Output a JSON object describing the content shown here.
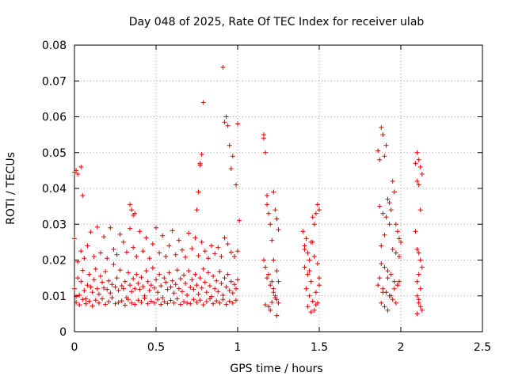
{
  "chart_data": {
    "type": "scatter",
    "title": "Day 048 of 2025, Rate Of TEC Index for receiver ulab",
    "xlabel": "GPS time / hours",
    "ylabel": "ROTI / TECUs",
    "xlim": [
      0,
      2.5
    ],
    "ylim": [
      0,
      0.08
    ],
    "xticks": [
      0,
      0.5,
      1,
      1.5,
      2,
      2.5
    ],
    "xtick_labels": [
      "0",
      "0.5",
      "1",
      "1.5",
      "2",
      "2.5"
    ],
    "yticks": [
      0,
      0.01,
      0.02,
      0.03,
      0.04,
      0.05,
      0.06,
      0.07,
      0.08
    ],
    "ytick_labels": [
      "0",
      "0.01",
      "0.02",
      "0.03",
      "0.04",
      "0.05",
      "0.06",
      "0.07",
      "0.08"
    ],
    "grid": true,
    "marker": "+",
    "marker_color": "#e00000",
    "x": [
      0.0,
      0.01,
      0.02,
      0.03,
      0.04,
      0.05,
      0.06,
      0.07,
      0.08,
      0.09,
      0.1,
      0.11,
      0.12,
      0.13,
      0.14,
      0.15,
      0.16,
      0.17,
      0.18,
      0.19,
      0.2,
      0.21,
      0.22,
      0.23,
      0.24,
      0.25,
      0.26,
      0.27,
      0.28,
      0.29,
      0.3,
      0.31,
      0.32,
      0.33,
      0.34,
      0.35,
      0.36,
      0.37,
      0.38,
      0.39,
      0.4,
      0.41,
      0.42,
      0.43,
      0.44,
      0.45,
      0.46,
      0.47,
      0.48,
      0.49,
      0.5,
      0.51,
      0.52,
      0.53,
      0.54,
      0.55,
      0.56,
      0.57,
      0.58,
      0.59,
      0.6,
      0.61,
      0.62,
      0.63,
      0.64,
      0.65,
      0.66,
      0.67,
      0.68,
      0.69,
      0.7,
      0.71,
      0.72,
      0.73,
      0.74,
      0.75,
      0.76,
      0.77,
      0.78,
      0.79,
      0.8,
      0.81,
      0.82,
      0.83,
      0.84,
      0.85,
      0.86,
      0.87,
      0.88,
      0.89,
      0.9,
      0.91,
      0.92,
      0.93,
      0.94,
      0.95,
      0.96,
      0.97,
      0.98,
      0.99,
      1.0,
      0.0,
      0.02,
      0.04,
      0.06,
      0.08,
      0.1,
      0.12,
      0.14,
      0.16,
      0.18,
      0.2,
      0.22,
      0.24,
      0.26,
      0.28,
      0.3,
      0.32,
      0.34,
      0.36,
      0.38,
      0.4,
      0.42,
      0.44,
      0.46,
      0.48,
      0.5,
      0.52,
      0.54,
      0.56,
      0.58,
      0.6,
      0.62,
      0.64,
      0.66,
      0.68,
      0.7,
      0.72,
      0.74,
      0.76,
      0.78,
      0.8,
      0.82,
      0.84,
      0.86,
      0.88,
      0.9,
      0.92,
      0.94,
      0.96,
      0.98,
      1.0,
      0.01,
      0.03,
      0.05,
      0.07,
      0.09,
      0.11,
      0.13,
      0.15,
      0.17,
      0.19,
      0.21,
      0.23,
      0.25,
      0.27,
      0.29,
      0.31,
      0.33,
      0.35,
      0.37,
      0.39,
      0.41,
      0.43,
      0.45,
      0.47,
      0.49,
      0.51,
      0.53,
      0.55,
      0.57,
      0.59,
      0.61,
      0.63,
      0.65,
      0.67,
      0.69,
      0.71,
      0.73,
      0.75,
      0.77,
      0.79,
      0.81,
      0.83,
      0.85,
      0.87,
      0.89,
      0.91,
      0.93,
      0.95,
      0.97,
      0.99,
      0.0,
      0.01,
      0.02,
      0.04,
      0.05,
      0.34,
      0.35,
      0.36,
      0.37,
      0.75,
      0.76,
      0.77,
      0.77,
      0.78,
      0.79,
      0.91,
      0.92,
      0.93,
      0.94,
      0.95,
      0.96,
      0.97,
      0.99,
      1.0,
      1.01,
      1.16,
      1.16,
      1.17,
      1.18,
      1.18,
      1.19,
      1.2,
      1.21,
      1.22,
      1.23,
      1.24,
      1.25,
      1.16,
      1.17,
      1.19,
      1.21,
      1.22,
      1.23,
      1.24,
      1.25,
      1.18,
      1.2,
      1.22,
      1.24,
      1.25,
      1.17,
      1.19,
      1.21,
      1.23,
      1.2,
      1.24,
      1.22,
      1.4,
      1.41,
      1.42,
      1.43,
      1.44,
      1.45,
      1.46,
      1.47,
      1.48,
      1.49,
      1.5,
      1.41,
      1.43,
      1.45,
      1.47,
      1.49,
      1.42,
      1.44,
      1.46,
      1.48,
      1.5,
      1.43,
      1.47,
      1.49,
      1.45,
      1.48,
      1.41,
      1.46,
      1.5,
      1.44,
      1.86,
      1.87,
      1.88,
      1.89,
      1.9,
      1.91,
      1.92,
      1.93,
      1.94,
      1.95,
      1.96,
      1.97,
      1.98,
      1.99,
      2.0,
      1.87,
      1.89,
      1.91,
      1.93,
      1.95,
      1.97,
      1.99,
      1.88,
      1.9,
      1.92,
      1.94,
      1.96,
      1.98,
      1.87,
      1.89,
      1.91,
      1.93,
      1.95,
      1.97,
      1.99,
      1.88,
      1.9,
      1.92,
      1.94,
      1.96,
      1.98,
      1.9,
      1.88,
      1.92,
      1.86,
      1.89,
      2.09,
      2.1,
      2.11,
      2.12,
      2.13,
      2.1,
      2.11,
      2.12,
      2.09,
      2.1,
      2.11,
      2.12,
      2.13,
      2.11,
      2.1,
      2.12,
      2.1,
      2.11,
      2.12,
      2.11,
      2.13,
      2.1
    ],
    "y": [
      0.012,
      0.0098,
      0.015,
      0.0102,
      0.014,
      0.0171,
      0.0115,
      0.0092,
      0.013,
      0.016,
      0.0125,
      0.011,
      0.0145,
      0.0175,
      0.012,
      0.0105,
      0.0155,
      0.0138,
      0.0122,
      0.0168,
      0.0118,
      0.0142,
      0.0108,
      0.0132,
      0.0188,
      0.0125,
      0.015,
      0.0115,
      0.0172,
      0.0128,
      0.012,
      0.014,
      0.0095,
      0.0165,
      0.013,
      0.0112,
      0.0148,
      0.012,
      0.016,
      0.0135,
      0.0118,
      0.0152,
      0.0126,
      0.01,
      0.017,
      0.014,
      0.0115,
      0.013,
      0.0178,
      0.0122,
      0.0145,
      0.011,
      0.016,
      0.0128,
      0.0095,
      0.015,
      0.0138,
      0.0118,
      0.0165,
      0.0125,
      0.0142,
      0.0108,
      0.0132,
      0.0172,
      0.012,
      0.0148,
      0.0112,
      0.0158,
      0.0135,
      0.0102,
      0.017,
      0.0124,
      0.0145,
      0.0118,
      0.016,
      0.013,
      0.0105,
      0.015,
      0.0122,
      0.0175,
      0.0138,
      0.011,
      0.0165,
      0.0128,
      0.0098,
      0.0155,
      0.012,
      0.0142,
      0.0112,
      0.0168,
      0.0135,
      0.0102,
      0.015,
      0.0125,
      0.016,
      0.0115,
      0.014,
      0.0108,
      0.0132,
      0.012,
      0.0145,
      0.026,
      0.0195,
      0.0225,
      0.0205,
      0.024,
      0.0278,
      0.021,
      0.0292,
      0.022,
      0.0265,
      0.0205,
      0.029,
      0.023,
      0.0215,
      0.0272,
      0.025,
      0.0222,
      0.0288,
      0.0235,
      0.021,
      0.028,
      0.0225,
      0.0262,
      0.0205,
      0.0245,
      0.029,
      0.022,
      0.0268,
      0.021,
      0.024,
      0.0282,
      0.0215,
      0.0255,
      0.0228,
      0.0208,
      0.0275,
      0.0232,
      0.0262,
      0.0212,
      0.025,
      0.0225,
      0.0205,
      0.024,
      0.0218,
      0.0235,
      0.021,
      0.0262,
      0.0245,
      0.0222,
      0.021,
      0.0225,
      0.0082,
      0.0075,
      0.009,
      0.0078,
      0.0085,
      0.0072,
      0.0088,
      0.008,
      0.0092,
      0.0076,
      0.0084,
      0.0095,
      0.0078,
      0.0082,
      0.0086,
      0.0074,
      0.009,
      0.008,
      0.0076,
      0.0088,
      0.0082,
      0.0094,
      0.0078,
      0.0085,
      0.008,
      0.009,
      0.0076,
      0.0084,
      0.0079,
      0.0087,
      0.008,
      0.0092,
      0.0076,
      0.0084,
      0.008,
      0.0078,
      0.009,
      0.0082,
      0.0088,
      0.0075,
      0.0084,
      0.0092,
      0.0078,
      0.0086,
      0.008,
      0.009,
      0.0076,
      0.0085,
      0.008,
      0.0088,
      0.0445,
      0.045,
      0.044,
      0.046,
      0.038,
      0.0355,
      0.034,
      0.0325,
      0.033,
      0.034,
      0.039,
      0.047,
      0.0465,
      0.0495,
      0.064,
      0.0738,
      0.0585,
      0.06,
      0.0575,
      0.052,
      0.0455,
      0.049,
      0.041,
      0.058,
      0.031,
      0.055,
      0.054,
      0.05,
      0.038,
      0.0355,
      0.033,
      0.03,
      0.0255,
      0.039,
      0.034,
      0.0315,
      0.0285,
      0.02,
      0.018,
      0.016,
      0.014,
      0.012,
      0.01,
      0.009,
      0.008,
      0.015,
      0.013,
      0.011,
      0.017,
      0.014,
      0.0075,
      0.007,
      0.0082,
      0.0095,
      0.006,
      0.0045,
      0.02,
      0.028,
      0.024,
      0.026,
      0.022,
      0.02,
      0.025,
      0.032,
      0.03,
      0.033,
      0.0355,
      0.034,
      0.018,
      0.016,
      0.014,
      0.021,
      0.019,
      0.012,
      0.01,
      0.0085,
      0.011,
      0.013,
      0.007,
      0.006,
      0.008,
      0.0055,
      0.0075,
      0.023,
      0.025,
      0.015,
      0.017,
      0.0505,
      0.048,
      0.057,
      0.055,
      0.049,
      0.052,
      0.037,
      0.036,
      0.034,
      0.042,
      0.039,
      0.03,
      0.028,
      0.026,
      0.025,
      0.035,
      0.033,
      0.032,
      0.03,
      0.023,
      0.022,
      0.021,
      0.019,
      0.018,
      0.017,
      0.016,
      0.014,
      0.013,
      0.015,
      0.012,
      0.011,
      0.01,
      0.009,
      0.008,
      0.014,
      0.008,
      0.007,
      0.006,
      0.01,
      0.012,
      0.013,
      0.027,
      0.024,
      0.015,
      0.013,
      0.011,
      0.047,
      0.05,
      0.048,
      0.046,
      0.044,
      0.042,
      0.041,
      0.034,
      0.028,
      0.023,
      0.022,
      0.02,
      0.018,
      0.016,
      0.014,
      0.012,
      0.01,
      0.009,
      0.007,
      0.008,
      0.006,
      0.005
    ]
  }
}
